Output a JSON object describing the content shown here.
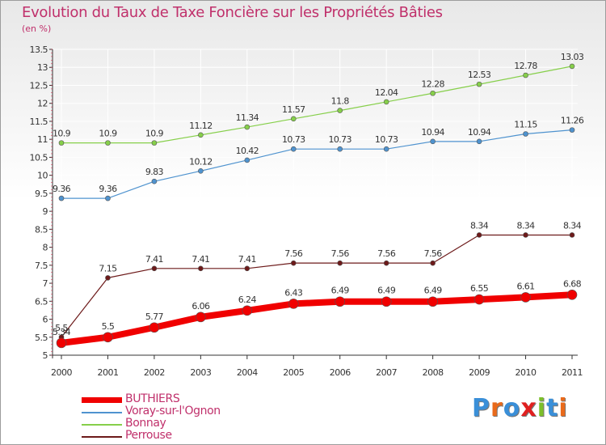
{
  "title": "Evolution du Taux de Taxe Foncière sur les Propriétés Bâties",
  "unit_label": "(en %)",
  "logo": {
    "text": "Proxiti",
    "colors": [
      "#3a8fd8",
      "#e96a1b",
      "#3a8fd8",
      "#e02020",
      "#7cbf2a",
      "#3a8fd8",
      "#e96a1b"
    ]
  },
  "colors": {
    "BUTHIERS": "#f00000",
    "Voray-sur-l'Ognon": "#4f93cf",
    "Bonnay": "#86cf4a",
    "Perrouse": "#6d1a1a",
    "axis": "#333333",
    "grid": "#ffffff",
    "label": "#c0306b"
  },
  "chart_data": {
    "type": "line",
    "title": "Evolution du Taux de Taxe Foncière sur les Propriétés Bâties",
    "ylabel": "(en %)",
    "x": [
      "2000",
      "2001",
      "2002",
      "2003",
      "2004",
      "2005",
      "2006",
      "2007",
      "2008",
      "2009",
      "2010",
      "2011"
    ],
    "ylim": [
      5,
      13.5
    ],
    "yticks": [
      "5",
      "5.5",
      "6",
      "6.5",
      "7",
      "7.5",
      "8",
      "8.5",
      "9",
      "9.5",
      "10",
      "10.5",
      "11",
      "11.5",
      "12",
      "12.5",
      "13",
      "13.5"
    ],
    "grid": true,
    "legend_position": "bottom-left",
    "series": [
      {
        "name": "Bonnay",
        "values": [
          10.9,
          10.9,
          10.9,
          11.12,
          11.34,
          11.57,
          11.8,
          12.04,
          12.28,
          12.53,
          12.78,
          13.03
        ],
        "labels": [
          "10.9",
          "10.9",
          "10.9",
          "11.12",
          "11.34",
          "11.57",
          "11.8",
          "12.04",
          "12.28",
          "12.53",
          "12.78",
          "13.03"
        ]
      },
      {
        "name": "Voray-sur-l'Ognon",
        "values": [
          9.36,
          9.36,
          9.83,
          10.12,
          10.42,
          10.73,
          10.73,
          10.73,
          10.94,
          10.94,
          11.15,
          11.26
        ],
        "labels": [
          "9.36",
          "9.36",
          "9.83",
          "10.12",
          "10.42",
          "10.73",
          "10.73",
          "10.73",
          "10.94",
          "10.94",
          "11.15",
          "11.26"
        ]
      },
      {
        "name": "Perrouse",
        "values": [
          5.5,
          7.15,
          7.41,
          7.41,
          7.41,
          7.56,
          7.56,
          7.56,
          7.56,
          8.34,
          8.34,
          8.34
        ],
        "labels": [
          "5.5",
          "7.15",
          "7.41",
          "7.41",
          "7.41",
          "7.56",
          "7.56",
          "7.56",
          "7.56",
          "8.34",
          "8.34",
          "8.34"
        ]
      },
      {
        "name": "BUTHIERS",
        "values": [
          5.34,
          5.5,
          5.77,
          6.06,
          6.24,
          6.43,
          6.49,
          6.49,
          6.49,
          6.55,
          6.61,
          6.68
        ],
        "labels": [
          "5.34",
          "5.5",
          "5.77",
          "6.06",
          "6.24",
          "6.43",
          "6.49",
          "6.49",
          "6.49",
          "6.55",
          "6.61",
          "6.68"
        ]
      }
    ],
    "legend": [
      "BUTHIERS",
      "Voray-sur-l'Ognon",
      "Bonnay",
      "Perrouse"
    ]
  }
}
